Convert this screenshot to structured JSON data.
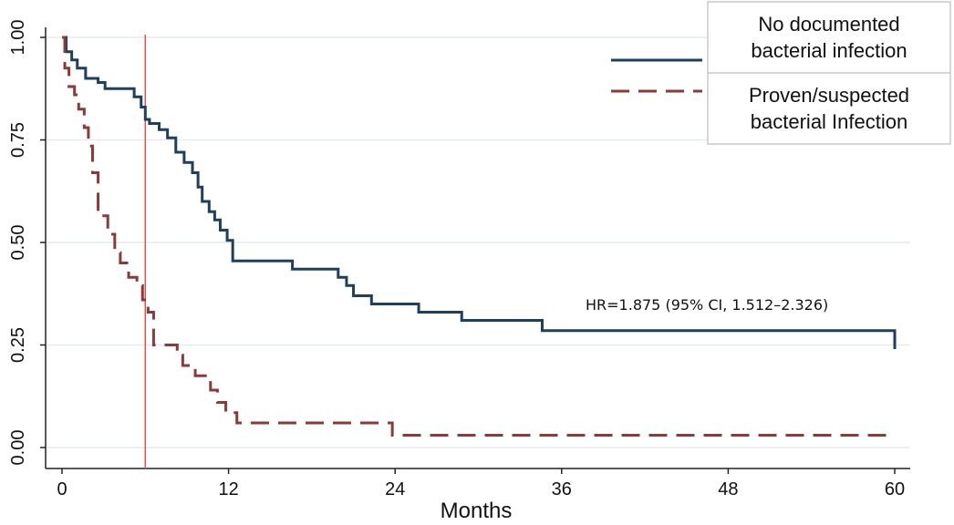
{
  "chart_data": {
    "type": "line",
    "xlabel": "Months",
    "ylabel": "",
    "xlim": [
      0,
      60
    ],
    "ylim": [
      0,
      1
    ],
    "x_ticks": [
      0,
      12,
      24,
      36,
      48,
      60
    ],
    "y_ticks": [
      0,
      0.25,
      0.5,
      0.75,
      1
    ],
    "x_tick_labels": [
      "0",
      "12",
      "24",
      "36",
      "48",
      "60"
    ],
    "y_tick_labels": [
      "0.00",
      "0.25",
      "0.50",
      "0.75",
      "1.00"
    ],
    "grid": true,
    "legend_position": "top-right",
    "reference_line_x": 6,
    "reference_line_color": "#d9534f",
    "annotation": "HR=1.875 (95% CI, 1.512–2.326)",
    "series": [
      {
        "name": "No documented bacterial infection",
        "color": "#1f3f5f",
        "style": "solid",
        "x": [
          0,
          0.3,
          0.7,
          1.1,
          1.7,
          2.6,
          3.1,
          3.8,
          5.2,
          5.7,
          6.0,
          6.3,
          7.0,
          7.6,
          8.2,
          8.8,
          9.4,
          9.8,
          10.1,
          10.6,
          11.0,
          11.4,
          11.9,
          12.3,
          16.6,
          19.9,
          20.5,
          21.0,
          22.3,
          25.7,
          28.8,
          34.6,
          60,
          60
        ],
        "y": [
          1.0,
          0.965,
          0.945,
          0.925,
          0.9,
          0.89,
          0.875,
          0.875,
          0.855,
          0.83,
          0.8,
          0.79,
          0.775,
          0.755,
          0.72,
          0.695,
          0.67,
          0.635,
          0.6,
          0.575,
          0.555,
          0.53,
          0.505,
          0.455,
          0.435,
          0.415,
          0.395,
          0.37,
          0.35,
          0.33,
          0.31,
          0.285,
          0.285,
          0.24
        ]
      },
      {
        "name": "Proven/suspected bacterial Infection",
        "color": "#8b3a3a",
        "style": "dashed",
        "x": [
          0,
          0.2,
          0.5,
          0.9,
          1.2,
          1.6,
          1.9,
          2.2,
          2.6,
          2.8,
          3.3,
          3.8,
          4.2,
          4.8,
          5.4,
          5.8,
          6.2,
          6.6,
          8.3,
          8.7,
          9.6,
          10.7,
          11.2,
          11.8,
          12.6,
          14.2,
          23.8,
          60
        ],
        "y": [
          1.0,
          0.925,
          0.88,
          0.86,
          0.825,
          0.78,
          0.735,
          0.67,
          0.575,
          0.565,
          0.52,
          0.475,
          0.45,
          0.415,
          0.395,
          0.36,
          0.33,
          0.25,
          0.225,
          0.2,
          0.175,
          0.14,
          0.11,
          0.085,
          0.06,
          0.06,
          0.03,
          0.03
        ]
      }
    ]
  }
}
